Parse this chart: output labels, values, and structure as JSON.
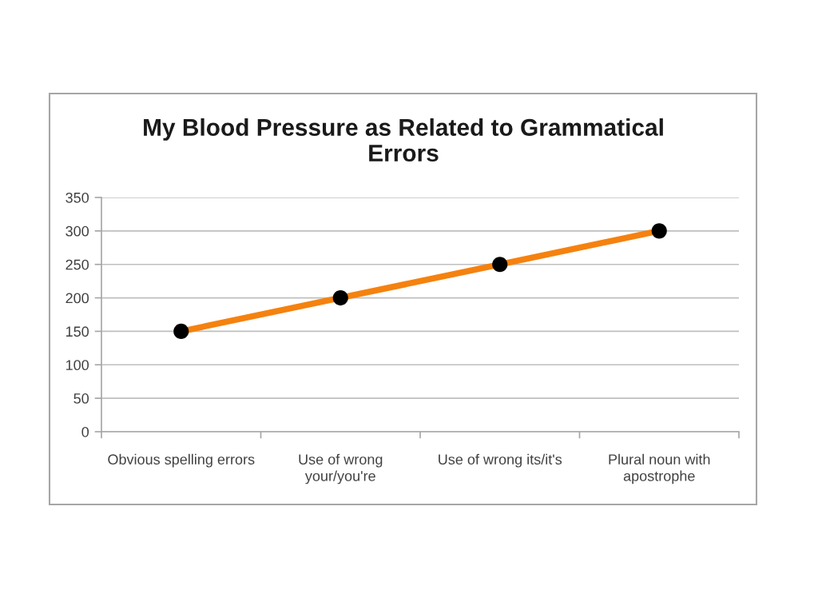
{
  "chart_data": {
    "type": "line",
    "title": "My Blood Pressure as Related to Grammatical\nErrors",
    "categories": [
      "Obvious spelling errors",
      "Use of wrong\nyour/you're",
      "Use of wrong its/it's",
      "Plural noun with\napostrophe"
    ],
    "series": [
      {
        "color": "#f5820f",
        "colors": [
          "#000000",
          "#000000",
          "#000000",
          "#000000"
        ],
        "values": [
          150,
          200,
          250,
          300
        ]
      }
    ],
    "ylim": [
      0,
      350
    ],
    "yticks": [
      0,
      50,
      100,
      150,
      200,
      250,
      300,
      350
    ],
    "grid": "y",
    "marker": "circle",
    "line_style": "solid"
  }
}
